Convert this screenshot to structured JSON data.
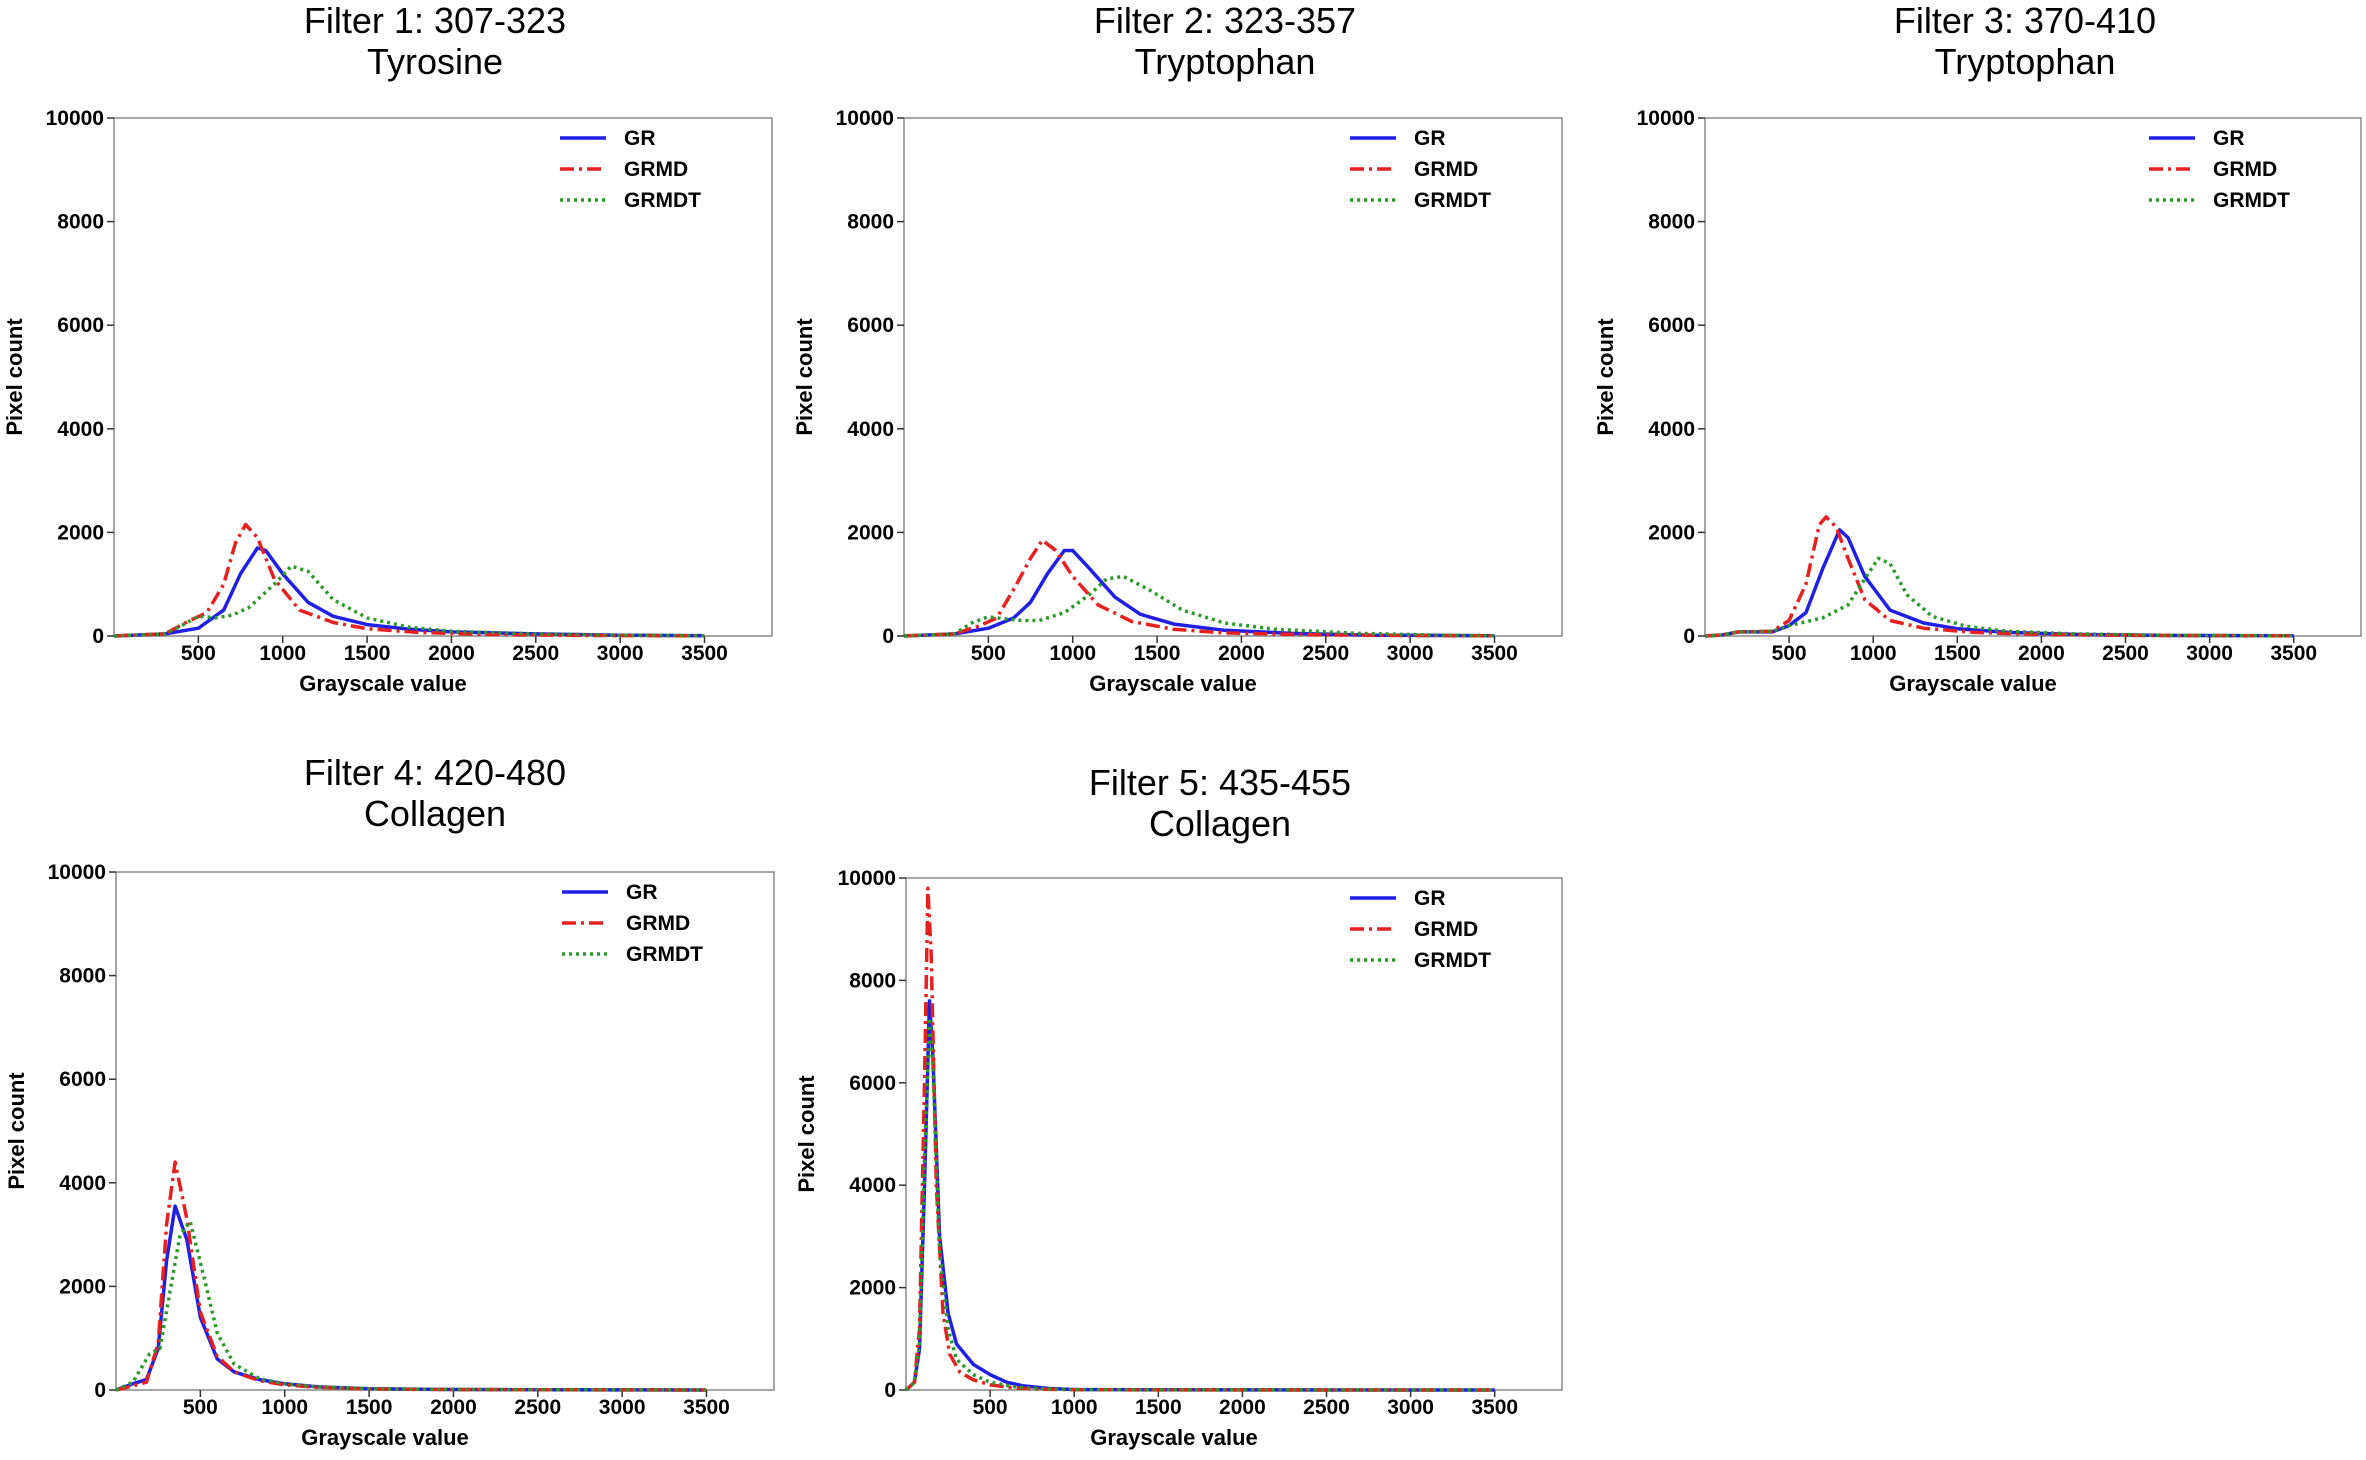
{
  "colors": {
    "GR": "#1f1fe6",
    "GRMD": "#e61f1f",
    "GRMDT": "#2a9a2a",
    "axis": "#888888"
  },
  "chart_data": [
    {
      "type": "line",
      "title_line1": "Filter 1: 307-323",
      "title_line2": "Tyrosine",
      "xlabel": "Grayscale value",
      "ylabel": "Pixel count",
      "xlim": [
        0,
        3900
      ],
      "ylim": [
        0,
        10000
      ],
      "xticks": [
        500,
        1000,
        1500,
        2000,
        2500,
        3000,
        3500
      ],
      "yticks": [
        0,
        2000,
        4000,
        6000,
        8000,
        10000
      ],
      "legend_position": "top-right",
      "series": [
        {
          "name": "GR",
          "style": "solid",
          "x": [
            0,
            300,
            500,
            650,
            750,
            850,
            900,
            1000,
            1150,
            1300,
            1500,
            1750,
            2000,
            2500,
            3000,
            3500
          ],
          "y": [
            0,
            40,
            150,
            500,
            1200,
            1700,
            1650,
            1200,
            650,
            380,
            220,
            130,
            80,
            40,
            15,
            5
          ]
        },
        {
          "name": "GRMD",
          "style": "dashdot",
          "x": [
            0,
            300,
            450,
            550,
            650,
            720,
            780,
            850,
            950,
            1100,
            1300,
            1500,
            1800,
            2200,
            2800,
            3500
          ],
          "y": [
            0,
            40,
            300,
            450,
            1000,
            1800,
            2150,
            1900,
            1100,
            500,
            260,
            140,
            70,
            30,
            10,
            3
          ]
        },
        {
          "name": "GRMDT",
          "style": "dotted",
          "x": [
            0,
            300,
            400,
            500,
            600,
            700,
            800,
            950,
            1050,
            1150,
            1300,
            1500,
            1750,
            2000,
            2500,
            3000,
            3500
          ],
          "y": [
            0,
            40,
            200,
            380,
            350,
            400,
            550,
            1000,
            1350,
            1250,
            700,
            350,
            170,
            90,
            40,
            15,
            5
          ]
        }
      ]
    },
    {
      "type": "line",
      "title_line1": "Filter 2: 323-357",
      "title_line2": "Tryptophan",
      "xlabel": "Grayscale value",
      "ylabel": "Pixel count",
      "xlim": [
        0,
        3900
      ],
      "ylim": [
        0,
        10000
      ],
      "xticks": [
        500,
        1000,
        1500,
        2000,
        2500,
        3000,
        3500
      ],
      "yticks": [
        0,
        2000,
        4000,
        6000,
        8000,
        10000
      ],
      "legend_position": "top-right",
      "series": [
        {
          "name": "GR",
          "style": "solid",
          "x": [
            0,
            300,
            500,
            650,
            750,
            850,
            950,
            1000,
            1100,
            1250,
            1400,
            1600,
            1900,
            2300,
            2800,
            3500
          ],
          "y": [
            0,
            40,
            150,
            350,
            650,
            1200,
            1650,
            1650,
            1300,
            750,
            420,
            230,
            110,
            50,
            15,
            5
          ]
        },
        {
          "name": "GRMD",
          "style": "dashdot",
          "x": [
            0,
            300,
            450,
            550,
            650,
            750,
            820,
            900,
            1000,
            1150,
            1350,
            1600,
            1900,
            2400,
            3000,
            3500
          ],
          "y": [
            0,
            40,
            200,
            350,
            900,
            1500,
            1850,
            1650,
            1150,
            600,
            280,
            130,
            60,
            25,
            8,
            3
          ]
        },
        {
          "name": "GRMDT",
          "style": "dotted",
          "x": [
            0,
            300,
            400,
            500,
            600,
            700,
            800,
            950,
            1100,
            1200,
            1300,
            1450,
            1650,
            1900,
            2200,
            2700,
            3200,
            3500
          ],
          "y": [
            0,
            40,
            250,
            370,
            330,
            300,
            300,
            450,
            800,
            1100,
            1150,
            900,
            500,
            250,
            130,
            50,
            15,
            5
          ]
        }
      ]
    },
    {
      "type": "line",
      "title_line1": "Filter 3: 370-410",
      "title_line2": "Tryptophan",
      "xlabel": "Grayscale value",
      "ylabel": "Pixel count",
      "xlim": [
        0,
        3900
      ],
      "ylim": [
        0,
        10000
      ],
      "xticks": [
        500,
        1000,
        1500,
        2000,
        2500,
        3000,
        3500
      ],
      "yticks": [
        0,
        2000,
        4000,
        6000,
        8000,
        10000
      ],
      "legend_position": "top-right",
      "series": [
        {
          "name": "GR",
          "style": "solid",
          "x": [
            0,
            100,
            200,
            400,
            500,
            600,
            700,
            800,
            850,
            950,
            1100,
            1300,
            1500,
            1800,
            2200,
            2800,
            3500
          ],
          "y": [
            0,
            20,
            80,
            80,
            200,
            450,
            1300,
            2050,
            1900,
            1150,
            500,
            250,
            140,
            70,
            30,
            10,
            3
          ]
        },
        {
          "name": "GRMD",
          "style": "dashdot",
          "x": [
            0,
            100,
            200,
            400,
            500,
            600,
            680,
            720,
            780,
            850,
            950,
            1100,
            1300,
            1600,
            2000,
            2600,
            3500
          ],
          "y": [
            0,
            20,
            80,
            90,
            300,
            1000,
            2150,
            2300,
            2100,
            1500,
            700,
            300,
            150,
            70,
            30,
            10,
            3
          ]
        },
        {
          "name": "GRMDT",
          "style": "dotted",
          "x": [
            0,
            100,
            200,
            400,
            500,
            700,
            850,
            950,
            1030,
            1100,
            1200,
            1350,
            1550,
            1800,
            2200,
            2800,
            3500
          ],
          "y": [
            0,
            20,
            80,
            90,
            200,
            350,
            600,
            1100,
            1500,
            1400,
            800,
            380,
            190,
            90,
            40,
            12,
            3
          ]
        }
      ]
    },
    {
      "type": "line",
      "title_line1": "Filter 4: 420-480",
      "title_line2": "Collagen",
      "xlabel": "Grayscale value",
      "ylabel": "Pixel count",
      "xlim": [
        0,
        3900
      ],
      "ylim": [
        0,
        10000
      ],
      "xticks": [
        500,
        1000,
        1500,
        2000,
        2500,
        3000,
        3500
      ],
      "yticks": [
        0,
        2000,
        4000,
        6000,
        8000,
        10000
      ],
      "legend_position": "top-right",
      "series": [
        {
          "name": "GR",
          "style": "solid",
          "x": [
            0,
            100,
            180,
            250,
            300,
            350,
            420,
            500,
            600,
            700,
            850,
            1000,
            1200,
            1500,
            2000,
            2500,
            3000,
            3500
          ],
          "y": [
            0,
            120,
            200,
            800,
            2500,
            3550,
            2900,
            1400,
            600,
            350,
            200,
            120,
            60,
            25,
            10,
            5,
            2,
            0
          ]
        },
        {
          "name": "GRMD",
          "style": "dashdot",
          "x": [
            0,
            100,
            180,
            250,
            300,
            350,
            420,
            500,
            600,
            700,
            850,
            1000,
            1200,
            1500,
            2000,
            3500
          ],
          "y": [
            0,
            80,
            150,
            900,
            3200,
            4400,
            3300,
            1500,
            650,
            350,
            180,
            100,
            50,
            20,
            8,
            0
          ]
        },
        {
          "name": "GRMDT",
          "style": "dotted",
          "x": [
            0,
            100,
            200,
            260,
            320,
            380,
            440,
            520,
            600,
            700,
            850,
            1000,
            1200,
            1500,
            2000,
            3500
          ],
          "y": [
            0,
            150,
            700,
            800,
            1900,
            3000,
            3250,
            2200,
            1100,
            500,
            220,
            120,
            60,
            25,
            10,
            0
          ]
        }
      ]
    },
    {
      "type": "line",
      "title_line1": "Filter 5: 435-455",
      "title_line2": "Collagen",
      "xlabel": "Grayscale value",
      "ylabel": "Pixel count",
      "xlim": [
        0,
        3900
      ],
      "ylim": [
        0,
        10000
      ],
      "xticks": [
        500,
        1000,
        1500,
        2000,
        2500,
        3000,
        3500
      ],
      "yticks": [
        0,
        2000,
        4000,
        6000,
        8000,
        10000
      ],
      "legend_position": "top-right",
      "series": [
        {
          "name": "GR",
          "style": "solid",
          "x": [
            0,
            50,
            80,
            110,
            140,
            160,
            200,
            250,
            300,
            400,
            500,
            600,
            700,
            850,
            1000,
            1500,
            2000,
            3500
          ],
          "y": [
            0,
            150,
            800,
            4000,
            7600,
            6500,
            3000,
            1500,
            900,
            500,
            300,
            150,
            80,
            30,
            10,
            3,
            1,
            0
          ]
        },
        {
          "name": "GRMD",
          "style": "dashdot",
          "x": [
            0,
            50,
            80,
            110,
            130,
            150,
            180,
            220,
            260,
            320,
            400,
            500,
            650,
            800,
            1000,
            1500,
            3500
          ],
          "y": [
            0,
            150,
            1200,
            6000,
            9800,
            8500,
            4000,
            1500,
            700,
            350,
            200,
            100,
            40,
            15,
            5,
            1,
            0
          ]
        },
        {
          "name": "GRMDT",
          "style": "dotted",
          "x": [
            0,
            50,
            80,
            110,
            140,
            160,
            200,
            250,
            300,
            400,
            500,
            650,
            800,
            1000,
            1500,
            3500
          ],
          "y": [
            0,
            150,
            900,
            4500,
            7200,
            6300,
            2700,
            1200,
            600,
            300,
            150,
            60,
            25,
            8,
            2,
            0
          ]
        }
      ]
    }
  ]
}
